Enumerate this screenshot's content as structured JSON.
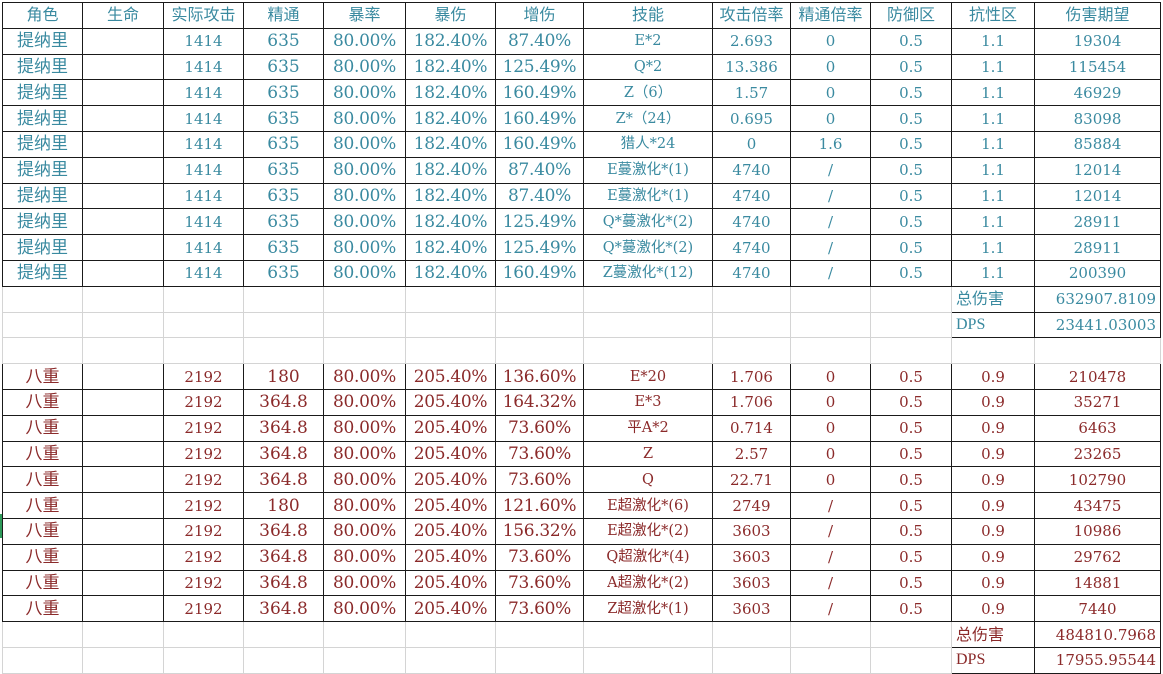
{
  "header": {
    "columns": [
      "角色",
      "生命",
      "实际攻击",
      "精通",
      "暴率",
      "暴伤",
      "增伤",
      "技能",
      "攻击倍率",
      "精通倍率",
      "防御区",
      "抗性区",
      "伤害期望"
    ]
  },
  "colors": {
    "tighnari_text": "#3a8aa0",
    "yae_text": "#8b2a2a",
    "border": "#1a1a1a",
    "gridline": "#d4d4d4"
  },
  "tighnari": {
    "rows": [
      {
        "char": "提纳里",
        "hp": "",
        "atk": "1414",
        "em": "635",
        "cr": "80.00%",
        "cd": "182.40%",
        "dmg": "87.40%",
        "skill": "E*2",
        "atk_mult": "2.693",
        "em_mult": "0",
        "def": "0.5",
        "res": "1.1",
        "exp": "19304"
      },
      {
        "char": "提纳里",
        "hp": "",
        "atk": "1414",
        "em": "635",
        "cr": "80.00%",
        "cd": "182.40%",
        "dmg": "125.49%",
        "skill": "Q*2",
        "atk_mult": "13.386",
        "em_mult": "0",
        "def": "0.5",
        "res": "1.1",
        "exp": "115454"
      },
      {
        "char": "提纳里",
        "hp": "",
        "atk": "1414",
        "em": "635",
        "cr": "80.00%",
        "cd": "182.40%",
        "dmg": "160.49%",
        "skill": "Z（6）",
        "atk_mult": "1.57",
        "em_mult": "0",
        "def": "0.5",
        "res": "1.1",
        "exp": "46929"
      },
      {
        "char": "提纳里",
        "hp": "",
        "atk": "1414",
        "em": "635",
        "cr": "80.00%",
        "cd": "182.40%",
        "dmg": "160.49%",
        "skill": "Z*（24）",
        "atk_mult": "0.695",
        "em_mult": "0",
        "def": "0.5",
        "res": "1.1",
        "exp": "83098"
      },
      {
        "char": "提纳里",
        "hp": "",
        "atk": "1414",
        "em": "635",
        "cr": "80.00%",
        "cd": "182.40%",
        "dmg": "160.49%",
        "skill": "猎人*24",
        "atk_mult": "0",
        "em_mult": "1.6",
        "def": "0.5",
        "res": "1.1",
        "exp": "85884"
      },
      {
        "char": "提纳里",
        "hp": "",
        "atk": "1414",
        "em": "635",
        "cr": "80.00%",
        "cd": "182.40%",
        "dmg": "87.40%",
        "skill": "E蔓激化*(1)",
        "atk_mult": "4740",
        "em_mult": "/",
        "def": "0.5",
        "res": "1.1",
        "exp": "12014"
      },
      {
        "char": "提纳里",
        "hp": "",
        "atk": "1414",
        "em": "635",
        "cr": "80.00%",
        "cd": "182.40%",
        "dmg": "87.40%",
        "skill": "E蔓激化*(1)",
        "atk_mult": "4740",
        "em_mult": "/",
        "def": "0.5",
        "res": "1.1",
        "exp": "12014"
      },
      {
        "char": "提纳里",
        "hp": "",
        "atk": "1414",
        "em": "635",
        "cr": "80.00%",
        "cd": "182.40%",
        "dmg": "125.49%",
        "skill": "Q*蔓激化*(2)",
        "atk_mult": "4740",
        "em_mult": "/",
        "def": "0.5",
        "res": "1.1",
        "exp": "28911"
      },
      {
        "char": "提纳里",
        "hp": "",
        "atk": "1414",
        "em": "635",
        "cr": "80.00%",
        "cd": "182.40%",
        "dmg": "125.49%",
        "skill": "Q*蔓激化*(2)",
        "atk_mult": "4740",
        "em_mult": "/",
        "def": "0.5",
        "res": "1.1",
        "exp": "28911"
      },
      {
        "char": "提纳里",
        "hp": "",
        "atk": "1414",
        "em": "635",
        "cr": "80.00%",
        "cd": "182.40%",
        "dmg": "160.49%",
        "skill": "Z蔓激化*(12)",
        "atk_mult": "4740",
        "em_mult": "/",
        "def": "0.5",
        "res": "1.1",
        "exp": "200390"
      }
    ],
    "total_label": "总伤害",
    "total_value": "632907.8109",
    "dps_label": "DPS",
    "dps_value": "23441.03003"
  },
  "yae": {
    "rows": [
      {
        "char": "八重",
        "hp": "",
        "atk": "2192",
        "em": "180",
        "cr": "80.00%",
        "cd": "205.40%",
        "dmg": "136.60%",
        "skill": "E*20",
        "atk_mult": "1.706",
        "em_mult": "0",
        "def": "0.5",
        "res": "0.9",
        "exp": "210478"
      },
      {
        "char": "八重",
        "hp": "",
        "atk": "2192",
        "em": "364.8",
        "cr": "80.00%",
        "cd": "205.40%",
        "dmg": "164.32%",
        "skill": "E*3",
        "atk_mult": "1.706",
        "em_mult": "0",
        "def": "0.5",
        "res": "0.9",
        "exp": "35271"
      },
      {
        "char": "八重",
        "hp": "",
        "atk": "2192",
        "em": "364.8",
        "cr": "80.00%",
        "cd": "205.40%",
        "dmg": "73.60%",
        "skill": "平A*2",
        "atk_mult": "0.714",
        "em_mult": "0",
        "def": "0.5",
        "res": "0.9",
        "exp": "6463"
      },
      {
        "char": "八重",
        "hp": "",
        "atk": "2192",
        "em": "364.8",
        "cr": "80.00%",
        "cd": "205.40%",
        "dmg": "73.60%",
        "skill": "Z",
        "atk_mult": "2.57",
        "em_mult": "0",
        "def": "0.5",
        "res": "0.9",
        "exp": "23265"
      },
      {
        "char": "八重",
        "hp": "",
        "atk": "2192",
        "em": "364.8",
        "cr": "80.00%",
        "cd": "205.40%",
        "dmg": "73.60%",
        "skill": "Q",
        "atk_mult": "22.71",
        "em_mult": "0",
        "def": "0.5",
        "res": "0.9",
        "exp": "102790"
      },
      {
        "char": "八重",
        "hp": "",
        "atk": "2192",
        "em": "180",
        "cr": "80.00%",
        "cd": "205.40%",
        "dmg": "121.60%",
        "skill": "E超激化*(6)",
        "atk_mult": "2749",
        "em_mult": "/",
        "def": "0.5",
        "res": "0.9",
        "exp": "43475"
      },
      {
        "char": "八重",
        "hp": "",
        "atk": "2192",
        "em": "364.8",
        "cr": "80.00%",
        "cd": "205.40%",
        "dmg": "156.32%",
        "skill": "E超激化*(2)",
        "atk_mult": "3603",
        "em_mult": "/",
        "def": "0.5",
        "res": "0.9",
        "exp": "10986"
      },
      {
        "char": "八重",
        "hp": "",
        "atk": "2192",
        "em": "364.8",
        "cr": "80.00%",
        "cd": "205.40%",
        "dmg": "73.60%",
        "skill": "Q超激化*(4)",
        "atk_mult": "3603",
        "em_mult": "/",
        "def": "0.5",
        "res": "0.9",
        "exp": "29762"
      },
      {
        "char": "八重",
        "hp": "",
        "atk": "2192",
        "em": "364.8",
        "cr": "80.00%",
        "cd": "205.40%",
        "dmg": "73.60%",
        "skill": "A超激化*(2)",
        "atk_mult": "3603",
        "em_mult": "/",
        "def": "0.5",
        "res": "0.9",
        "exp": "14881"
      },
      {
        "char": "八重",
        "hp": "",
        "atk": "2192",
        "em": "364.8",
        "cr": "80.00%",
        "cd": "205.40%",
        "dmg": "73.60%",
        "skill": "Z超激化*(1)",
        "atk_mult": "3603",
        "em_mult": "/",
        "def": "0.5",
        "res": "0.9",
        "exp": "7440"
      }
    ],
    "total_label": "总伤害",
    "total_value": "484810.7968",
    "dps_label": "DPS",
    "dps_value": "17955.95544"
  }
}
